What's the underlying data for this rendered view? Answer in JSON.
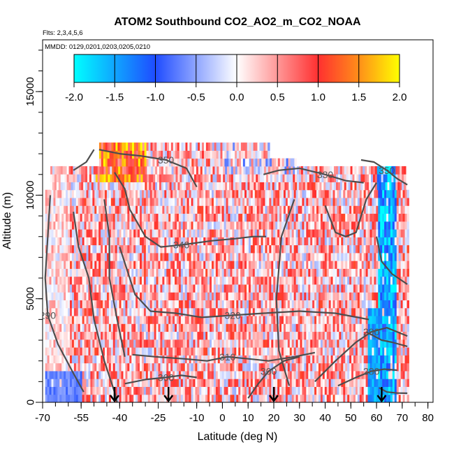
{
  "chart_data": {
    "type": "heatmap",
    "title": "ATOM2 Southbound CO2_AO2_m_CO2_NOAA",
    "flights_note": "Flts: 2,3,4,5,6",
    "dates_note": "MMDD: 0129,0201,0203,0205,0210",
    "xlabel": "Latitude (deg N)",
    "ylabel": "Altitude (m)",
    "xlim": [
      -70,
      82
    ],
    "ylim": [
      0,
      17500
    ],
    "xticks": [
      -70,
      -55,
      -40,
      -25,
      -10,
      0,
      10,
      20,
      30,
      40,
      50,
      60,
      70,
      80
    ],
    "yticks": [
      0,
      5000,
      10000,
      15000
    ],
    "colorbar": {
      "ticks": [
        -2.0,
        -1.5,
        -1.0,
        -0.5,
        0.0,
        0.5,
        1.0,
        1.5,
        2.0
      ],
      "tick_labels": [
        "-2.0",
        "-1.5",
        "-1.0",
        "-0.5",
        "0.0",
        "0.5",
        "1.0",
        "1.5",
        "2.0"
      ],
      "colors": [
        "#00ffff",
        "#2c7cff",
        "#2020ff",
        "#ffffff",
        "#ff2a2a",
        "#ff8c1a",
        "#ffff00"
      ]
    },
    "data_extent": {
      "lat": [
        -60,
        72
      ],
      "alt": [
        0,
        12500
      ]
    },
    "profile_arrows_lat": [
      -42,
      -21,
      20,
      62
    ],
    "contours": [
      {
        "label": "350",
        "points": [
          [
            -48,
            12200
          ],
          [
            -40,
            12000
          ],
          [
            -32,
            11900
          ],
          [
            -22,
            11700
          ],
          [
            -14,
            11300
          ],
          [
            -10,
            10400
          ]
        ]
      },
      {
        "label": "350",
        "points": [
          [
            54,
            11700
          ],
          [
            59,
            11600
          ],
          [
            64,
            11200
          ],
          [
            68,
            10800
          ],
          [
            72,
            10500
          ]
        ]
      },
      {
        "label": "330",
        "points": [
          [
            16,
            11000
          ],
          [
            22,
            11200
          ],
          [
            30,
            11300
          ],
          [
            40,
            11000
          ],
          [
            48,
            10700
          ],
          [
            55,
            10600
          ]
        ]
      },
      {
        "label": "340",
        "points": [
          [
            -42,
            11100
          ],
          [
            -38,
            10300
          ],
          [
            -36,
            9300
          ],
          [
            -30,
            8000
          ],
          [
            -24,
            7500
          ],
          [
            -16,
            7600
          ],
          [
            -4,
            7800
          ],
          [
            5,
            7900
          ],
          [
            12,
            8000
          ],
          [
            17,
            8000
          ]
        ]
      },
      {
        "label": "320",
        "points": [
          [
            -40,
            7500
          ],
          [
            -34,
            5200
          ],
          [
            -28,
            4400
          ],
          [
            -18,
            4300
          ],
          [
            -8,
            4100
          ],
          [
            4,
            4200
          ],
          [
            16,
            4300
          ],
          [
            30,
            4400
          ],
          [
            44,
            4300
          ],
          [
            57,
            4000
          ]
        ]
      },
      {
        "label": "310",
        "points": [
          [
            -35,
            2300
          ],
          [
            -26,
            2200
          ],
          [
            -15,
            2100
          ],
          [
            -6,
            2000
          ],
          [
            2,
            2200
          ],
          [
            10,
            2100
          ],
          [
            18,
            2000
          ],
          [
            28,
            2200
          ],
          [
            36,
            2400
          ]
        ]
      },
      {
        "label": "300",
        "points": [
          [
            -38,
            900
          ],
          [
            -30,
            1100
          ],
          [
            -22,
            1200
          ],
          [
            -16,
            1300
          ],
          [
            -10,
            1200
          ]
        ]
      },
      {
        "label": "300",
        "points": [
          [
            10,
            200
          ],
          [
            14,
            900
          ],
          [
            18,
            1500
          ],
          [
            24,
            2000
          ],
          [
            30,
            2200
          ]
        ]
      },
      {
        "label": "290",
        "points": [
          [
            -67,
            10000
          ],
          [
            -68,
            8000
          ],
          [
            -69,
            6000
          ],
          [
            -68,
            4200
          ],
          [
            -64,
            2800
          ],
          [
            -58,
            1400
          ],
          [
            -54,
            500
          ]
        ]
      },
      {
        "label": "290",
        "points": [
          [
            36,
            1000
          ],
          [
            44,
            2000
          ],
          [
            52,
            2900
          ],
          [
            58,
            3400
          ],
          [
            64,
            3600
          ],
          [
            72,
            3200
          ]
        ]
      },
      {
        "label": "280",
        "points": [
          [
            45,
            800
          ],
          [
            52,
            1200
          ],
          [
            58,
            1500
          ],
          [
            63,
            1600
          ],
          [
            68,
            1550
          ]
        ]
      },
      {
        "label": "",
        "points": [
          [
            -58,
            11200
          ],
          [
            -53,
            11600
          ],
          [
            -50,
            12200
          ]
        ]
      },
      {
        "label": "",
        "points": [
          [
            -58,
            9200
          ],
          [
            -56,
            7500
          ],
          [
            -52,
            6000
          ],
          [
            -50,
            4000
          ],
          [
            -46,
            2000
          ],
          [
            -42,
            500
          ],
          [
            -41,
            0
          ]
        ]
      },
      {
        "label": "",
        "points": [
          [
            -46,
            9800
          ],
          [
            -44,
            8000
          ],
          [
            -44,
            6000
          ],
          [
            -41,
            4000
          ],
          [
            -38,
            2200
          ]
        ]
      },
      {
        "label": "",
        "points": [
          [
            28,
            9800
          ],
          [
            23,
            8000
          ],
          [
            21,
            5000
          ],
          [
            22,
            2500
          ],
          [
            26,
            800
          ]
        ]
      },
      {
        "label": "",
        "points": [
          [
            40,
            9500
          ],
          [
            44,
            8200
          ],
          [
            48,
            8000
          ],
          [
            52,
            8200
          ],
          [
            56,
            9800
          ],
          [
            60,
            10600
          ]
        ]
      },
      {
        "label": "",
        "points": [
          [
            60,
            8000
          ],
          [
            62,
            6800
          ],
          [
            66,
            6200
          ],
          [
            72,
            5700
          ]
        ]
      },
      {
        "label": "",
        "points": [
          [
            56,
            3400
          ],
          [
            62,
            3000
          ],
          [
            66,
            2900
          ],
          [
            72,
            2700
          ]
        ]
      },
      {
        "label": "",
        "points": [
          [
            61,
            700
          ],
          [
            64,
            500
          ],
          [
            68,
            450
          ],
          [
            72,
            440
          ]
        ]
      }
    ]
  }
}
